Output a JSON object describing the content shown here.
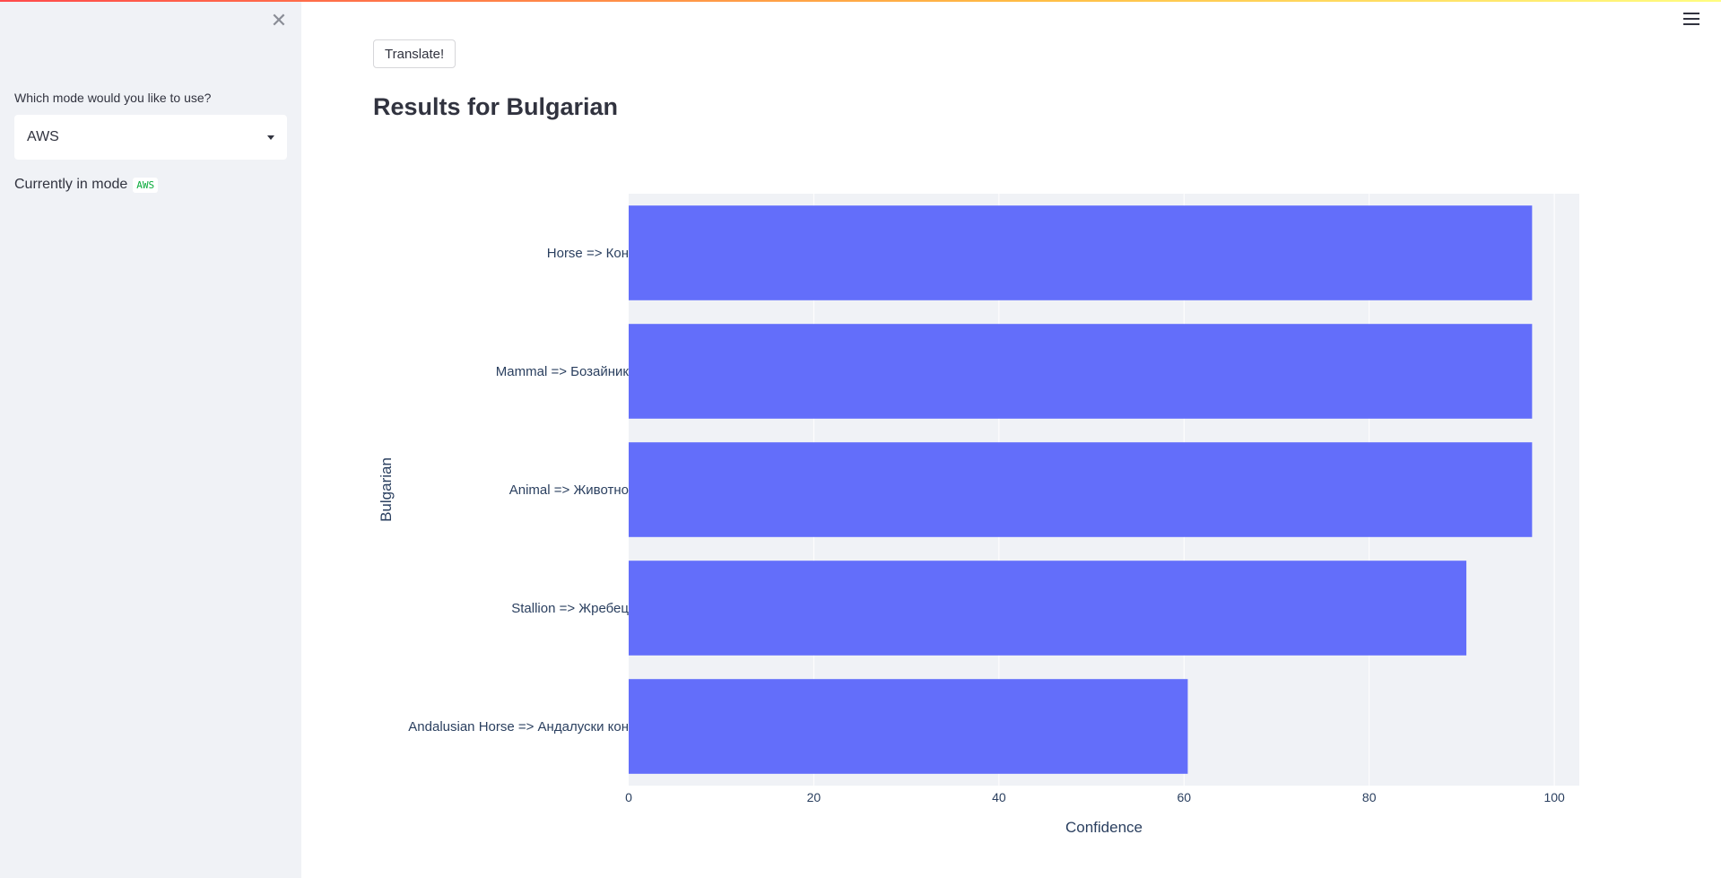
{
  "sidebar": {
    "close_icon": "close-icon",
    "mode_label": "Which mode would you like to use?",
    "mode_selected": "AWS",
    "current_mode_text": "Currently in mode",
    "current_mode_value": "AWS"
  },
  "header": {
    "menu_icon": "hamburger-menu-icon"
  },
  "main": {
    "translate_label": "Translate!",
    "results_title": "Results for Bulgarian"
  },
  "colors": {
    "bar": "#636efa",
    "plot_bg": "#f0f2f6",
    "accent": "#ff4b4b"
  },
  "chart_data": {
    "type": "bar",
    "orientation": "horizontal",
    "categories": [
      "Horse => Кон",
      "Mammal => Бозайник",
      "Animal => Животно",
      "Stallion => Жребец",
      "Andalusian Horse => Андалуски кон"
    ],
    "values": [
      97.6,
      97.6,
      97.6,
      90.5,
      60.4
    ],
    "xlabel": "Confidence",
    "ylabel": "Bulgarian",
    "xlim": [
      0,
      102.7
    ],
    "xticks": [
      0,
      20,
      40,
      60,
      80,
      100
    ],
    "grid": true
  }
}
